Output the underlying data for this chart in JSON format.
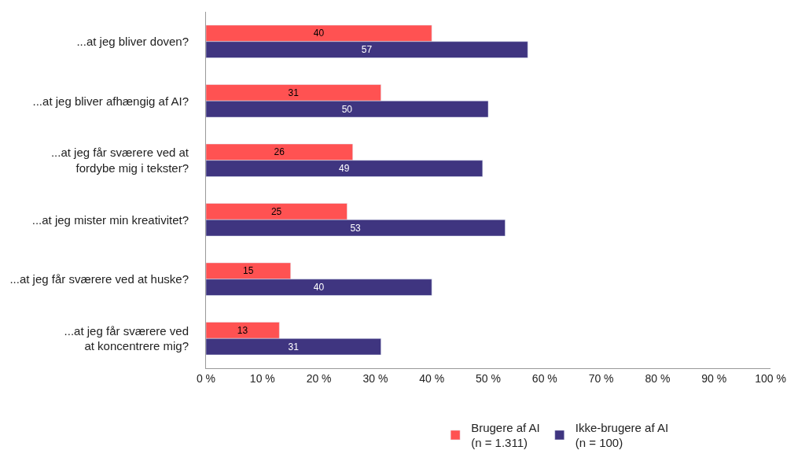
{
  "chart_data": {
    "type": "bar",
    "orientation": "horizontal",
    "categories": [
      "...at jeg bliver doven?",
      "...at jeg bliver afhængig af AI?",
      "...at jeg får sværere ved at\nfordybe mig i tekster?",
      "...at jeg mister min kreativitet?",
      "...at jeg får sværere ved at huske?",
      "...at jeg får sværere ved\nat koncentrere mig?"
    ],
    "series": [
      {
        "name": "Brugere af AI\n(n = 1.311)",
        "color": "#ff5252",
        "values": [
          40,
          31,
          26,
          25,
          15,
          13
        ]
      },
      {
        "name": "Ikke-brugere af AI\n(n = 100)",
        "color": "#3f3580",
        "values": [
          57,
          50,
          49,
          53,
          40,
          31
        ]
      }
    ],
    "xlim": [
      0,
      100
    ],
    "xticks": [
      {
        "value": 0,
        "label": "0 %"
      },
      {
        "value": 10,
        "label": "10 %"
      },
      {
        "value": 20,
        "label": "20 %"
      },
      {
        "value": 30,
        "label": "30 %"
      },
      {
        "value": 40,
        "label": "40 %"
      },
      {
        "value": 50,
        "label": "50 %"
      },
      {
        "value": 60,
        "label": "60 %"
      },
      {
        "value": 70,
        "label": "70 %"
      },
      {
        "value": 80,
        "label": "80 %"
      },
      {
        "value": 90,
        "label": "90 %"
      },
      {
        "value": 100,
        "label": "100 %"
      }
    ],
    "data_labels": true,
    "legend": "bottom"
  }
}
